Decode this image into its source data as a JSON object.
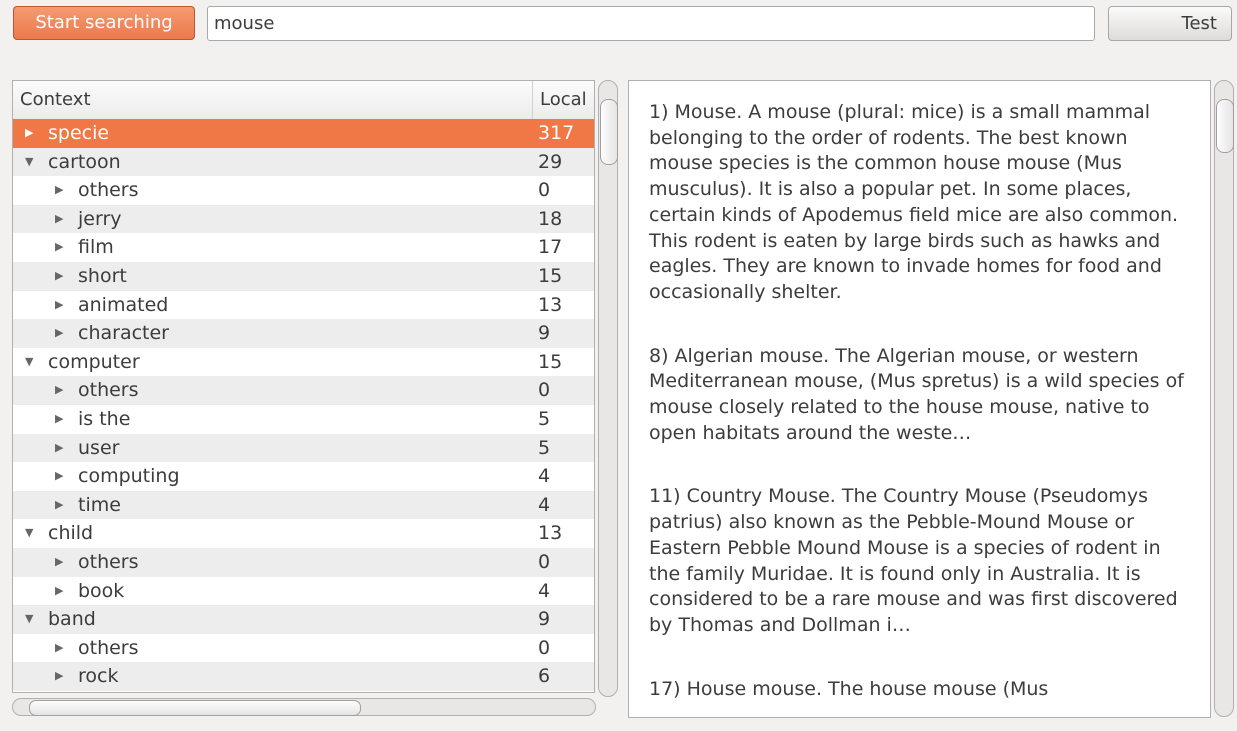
{
  "toolbar": {
    "search_button": "Start searching",
    "query": "mouse",
    "test_button": "Test"
  },
  "tree": {
    "columns": [
      "Context",
      "Local"
    ],
    "rows": [
      {
        "label": "specie",
        "count": 317,
        "selected": true
      },
      {
        "label": "cartoon",
        "count": 29,
        "children": [
          {
            "label": "others",
            "count": 0
          },
          {
            "label": "jerry",
            "count": 18
          },
          {
            "label": "film",
            "count": 17
          },
          {
            "label": "short",
            "count": 15
          },
          {
            "label": "animated",
            "count": 13
          },
          {
            "label": "character",
            "count": 9
          }
        ]
      },
      {
        "label": "computer",
        "count": 15,
        "children": [
          {
            "label": "others",
            "count": 0
          },
          {
            "label": "is the",
            "count": 5
          },
          {
            "label": "user",
            "count": 5
          },
          {
            "label": "computing",
            "count": 4
          },
          {
            "label": "time",
            "count": 4
          }
        ]
      },
      {
        "label": "child",
        "count": 13,
        "children": [
          {
            "label": "others",
            "count": 0
          },
          {
            "label": "book",
            "count": 4
          }
        ]
      },
      {
        "label": "band",
        "count": 9,
        "children": [
          {
            "label": "others",
            "count": 0
          },
          {
            "label": "rock",
            "count": 6
          }
        ]
      }
    ]
  },
  "results": [
    "1) Mouse. A mouse (plural: mice) is a small mammal belonging to the order of rodents. The best known mouse species is the common house mouse (Mus musculus). It is also a popular pet. In some places, certain kinds of Apodemus field mice are also common. This rodent is eaten by large birds such as hawks and eagles. They are known to invade homes for food and occasionally shelter.",
    "8) Algerian mouse. The Algerian mouse, or western Mediterranean mouse, (Mus spretus) is a wild species of mouse closely related to the house mouse, native to open habitats around the weste…",
    "11) Country Mouse. The Country Mouse (Pseudomys patrius) also known as the Pebble-Mound Mouse or Eastern Pebble Mound Mouse is a species of rodent in the family Muridae. It is found only in Australia. It is considered to be a rare mouse and was first discovered by Thomas and Dollman i…",
    "17) House mouse. The house mouse (Mus"
  ]
}
